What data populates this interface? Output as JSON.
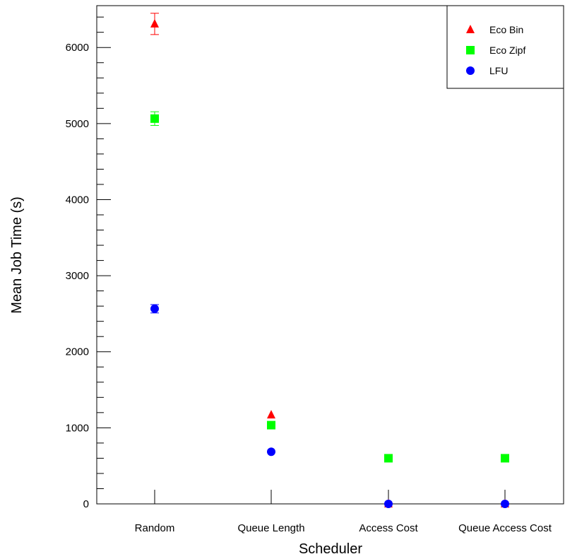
{
  "chart_data": {
    "type": "scatter",
    "title": "",
    "xlabel": "Scheduler",
    "ylabel": "Mean Job Time (s)",
    "categories": [
      "Random",
      "Queue Length",
      "Access Cost",
      "Queue Access Cost"
    ],
    "ylim": [
      0,
      6550
    ],
    "y_ticks": [
      0,
      1000,
      2000,
      3000,
      4000,
      5000,
      6000
    ],
    "grid": false,
    "legend_position": "top-right",
    "series": [
      {
        "name": "Eco Bin",
        "marker": "triangle",
        "color": "#ff0000",
        "values": [
          6310,
          1170,
          0,
          0
        ],
        "error": [
          140,
          0,
          0,
          0
        ]
      },
      {
        "name": "Eco Zipf",
        "marker": "square",
        "color": "#00ff00",
        "values": [
          5065,
          1035,
          600,
          600
        ],
        "error": [
          90,
          25,
          0,
          30
        ]
      },
      {
        "name": "LFU",
        "marker": "circle",
        "color": "#0000ff",
        "values": [
          2565,
          685,
          0,
          0
        ],
        "error": [
          55,
          0,
          0,
          0
        ]
      }
    ]
  }
}
